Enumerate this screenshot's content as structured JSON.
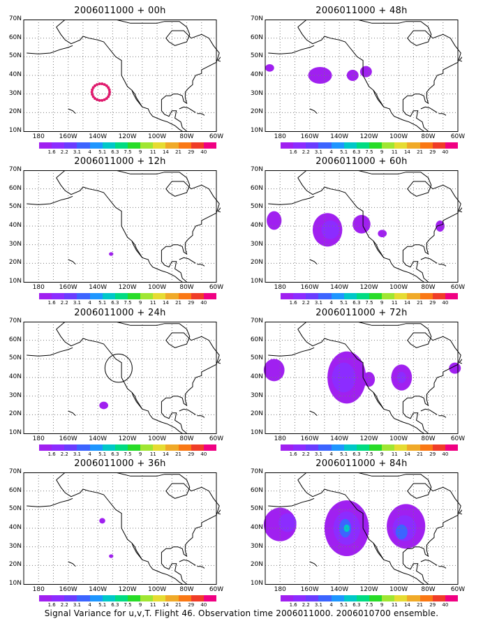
{
  "panels": [
    {
      "title": "2006011000 + 00h"
    },
    {
      "title": "2006011000 + 48h"
    },
    {
      "title": "2006011000 + 12h"
    },
    {
      "title": "2006011000 + 60h"
    },
    {
      "title": "2006011000 + 24h"
    },
    {
      "title": "2006011000 + 72h"
    },
    {
      "title": "2006011000 + 36h"
    },
    {
      "title": "2006011000 + 84h"
    }
  ],
  "lat_labels": [
    "70N",
    "60N",
    "50N",
    "40N",
    "30N",
    "20N",
    "10N"
  ],
  "lon_labels": [
    "180",
    "160W",
    "140W",
    "120W",
    "100W",
    "80W",
    "60W"
  ],
  "colorbar": {
    "labels": [
      "1.6",
      "2.2",
      "3.1",
      "4",
      "5.1",
      "6.3",
      "7.5",
      "9",
      "11",
      "14",
      "21",
      "29",
      "40"
    ],
    "colors": [
      "#a020f0",
      "#8c2cff",
      "#6a3cff",
      "#3c64ff",
      "#1e96ff",
      "#00c8c8",
      "#00dc82",
      "#28dc28",
      "#a0e632",
      "#e6dc32",
      "#f0aa28",
      "#fa7814",
      "#f03c28",
      "#f00082"
    ]
  },
  "caption": "Signal Variance for u,v,T. Flight 46. Observation time 2006011000. 2006010700 ensemble."
}
